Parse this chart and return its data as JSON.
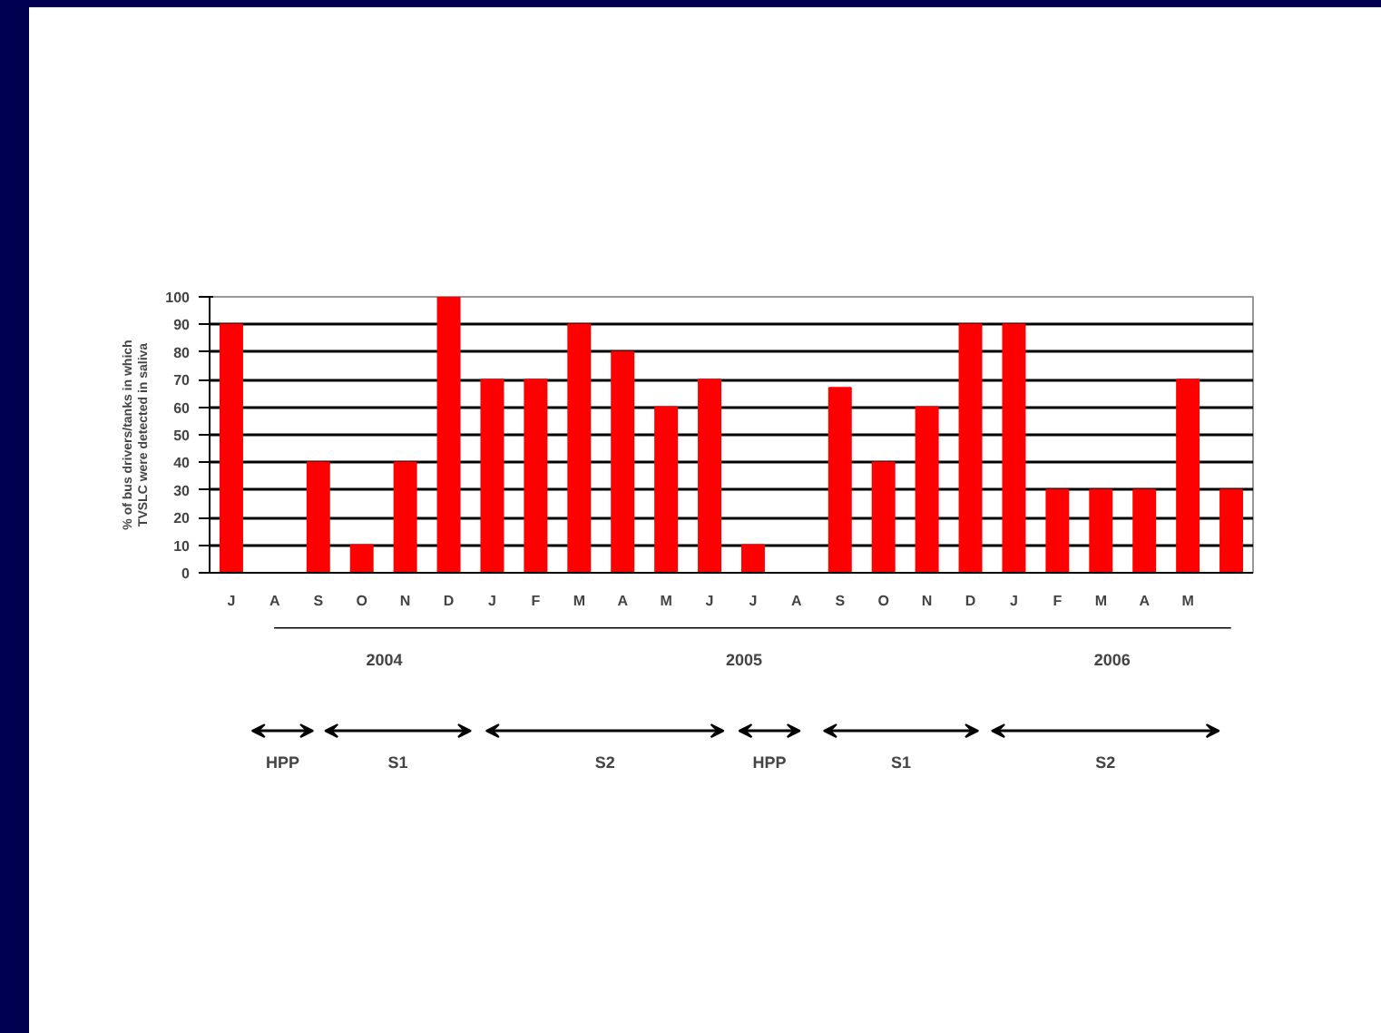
{
  "chart_data": {
    "type": "bar",
    "ylabel": "% of bus drivers/tanks in which\nTVSLC were detected in saliva",
    "categories": [
      "J",
      "A",
      "S",
      "O",
      "N",
      "D",
      "J",
      "F",
      "M",
      "A",
      "M",
      "J",
      "J",
      "A",
      "S",
      "O",
      "N",
      "D",
      "J",
      "F",
      "M",
      "A",
      "M",
      null
    ],
    "values": [
      90,
      0,
      40,
      10,
      40,
      100,
      70,
      70,
      90,
      80,
      60,
      70,
      10,
      0,
      67,
      40,
      60,
      90,
      90,
      30,
      30,
      30,
      70,
      30
    ],
    "color": "#ff0000",
    "ylim": [
      0,
      100
    ],
    "yticks": [
      0,
      10,
      20,
      30,
      40,
      50,
      60,
      70,
      80,
      90,
      100
    ],
    "grid": "y",
    "annotations": [
      "2004",
      "2005",
      "2006",
      "HPP",
      "S1",
      "S2",
      "HPP",
      "S1",
      "S2"
    ]
  }
}
